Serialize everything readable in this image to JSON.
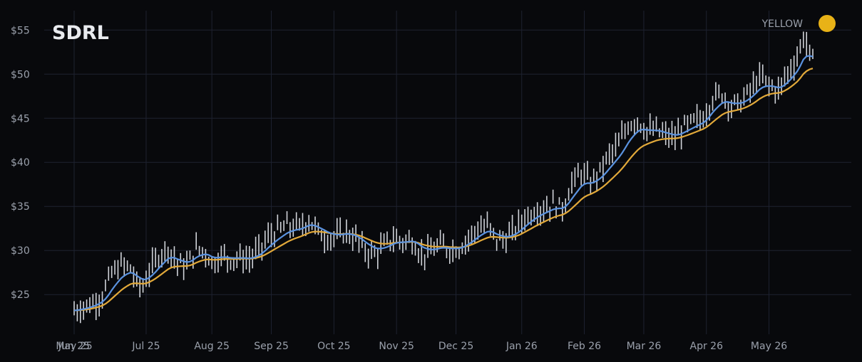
{
  "chart_data": {
    "type": "line",
    "title": "SDRL",
    "legend": {
      "label": "YELLOW",
      "placement": "top-right",
      "color": "#e8b217"
    },
    "colors": {
      "background": "#08090c",
      "grid": "#1e2230",
      "price_bars": "#d0d3d9",
      "fast_ma": "#5b93e0",
      "slow_ma": "#e2a93a"
    },
    "ylim": [
      20.5,
      57.2
    ],
    "y_ticks": [
      {
        "value": 25,
        "label": "$25"
      },
      {
        "value": 30,
        "label": "$30"
      },
      {
        "value": 35,
        "label": "$35"
      },
      {
        "value": 40,
        "label": "$40"
      },
      {
        "value": 45,
        "label": "$45"
      },
      {
        "value": 50,
        "label": "$50"
      },
      {
        "value": 55,
        "label": "$55"
      }
    ],
    "x_ticks": [
      {
        "label": "May 25",
        "index": 0
      },
      {
        "label": "Jun 25",
        "index": 0
      },
      {
        "label": "Jul 25",
        "index": 23
      },
      {
        "label": "Aug 25",
        "index": 44
      },
      {
        "label": "Sep 25",
        "index": 63
      },
      {
        "label": "Oct 25",
        "index": 83
      },
      {
        "label": "Nov 25",
        "index": 103
      },
      {
        "label": "Dec 25",
        "index": 122
      },
      {
        "label": "Jan 26",
        "index": 143
      },
      {
        "label": "Feb 26",
        "index": 163
      },
      {
        "label": "Mar 26",
        "index": 182
      },
      {
        "label": "Apr 26",
        "index": 202
      },
      {
        "label": "May 26",
        "index": 222
      }
    ],
    "last_index": 236,
    "price_anchors": [
      [
        0,
        23.2
      ],
      [
        3,
        23.6
      ],
      [
        6,
        24.0
      ],
      [
        9,
        24.9
      ],
      [
        12,
        27.4
      ],
      [
        15,
        28.3
      ],
      [
        18,
        28.0
      ],
      [
        20,
        26.2
      ],
      [
        22,
        26.0
      ],
      [
        24,
        27.6
      ],
      [
        27,
        29.4
      ],
      [
        30,
        30.3
      ],
      [
        33,
        28.5
      ],
      [
        36,
        28.3
      ],
      [
        39,
        30.2
      ],
      [
        42,
        29.8
      ],
      [
        44,
        28.6
      ],
      [
        47,
        29.4
      ],
      [
        50,
        29.0
      ],
      [
        53,
        29.2
      ],
      [
        56,
        29.0
      ],
      [
        59,
        30.0
      ],
      [
        62,
        31.5
      ],
      [
        65,
        32.2
      ],
      [
        68,
        32.8
      ],
      [
        72,
        32.6
      ],
      [
        75,
        33.5
      ],
      [
        78,
        32.1
      ],
      [
        81,
        31.4
      ],
      [
        84,
        31.6
      ],
      [
        87,
        32.1
      ],
      [
        90,
        31.3
      ],
      [
        93,
        30.0
      ],
      [
        96,
        29.6
      ],
      [
        99,
        30.5
      ],
      [
        102,
        31.4
      ],
      [
        105,
        31.0
      ],
      [
        108,
        31.2
      ],
      [
        111,
        29.5
      ],
      [
        114,
        29.9
      ],
      [
        117,
        30.6
      ],
      [
        120,
        30.1
      ],
      [
        123,
        30.3
      ],
      [
        126,
        31.4
      ],
      [
        129,
        32.5
      ],
      [
        132,
        32.8
      ],
      [
        135,
        31.2
      ],
      [
        138,
        31.3
      ],
      [
        141,
        32.4
      ],
      [
        144,
        33.8
      ],
      [
        147,
        34.5
      ],
      [
        150,
        34.8
      ],
      [
        153,
        35.2
      ],
      [
        156,
        34.8
      ],
      [
        159,
        37.6
      ],
      [
        162,
        38.9
      ],
      [
        165,
        37.6
      ],
      [
        168,
        39.0
      ],
      [
        171,
        40.8
      ],
      [
        174,
        42.0
      ],
      [
        177,
        44.3
      ],
      [
        180,
        44.8
      ],
      [
        183,
        43.5
      ],
      [
        186,
        43.6
      ],
      [
        189,
        43.0
      ],
      [
        192,
        42.8
      ],
      [
        195,
        44.0
      ],
      [
        198,
        44.6
      ],
      [
        201,
        45.1
      ],
      [
        204,
        47.3
      ],
      [
        207,
        47.8
      ],
      [
        210,
        46.4
      ],
      [
        213,
        46.8
      ],
      [
        216,
        48.1
      ],
      [
        219,
        49.6
      ],
      [
        222,
        48.8
      ],
      [
        225,
        48.1
      ],
      [
        228,
        50.2
      ],
      [
        231,
        51.9
      ],
      [
        233,
        54.3
      ],
      [
        235,
        52.3
      ],
      [
        236,
        51.6
      ]
    ]
  }
}
